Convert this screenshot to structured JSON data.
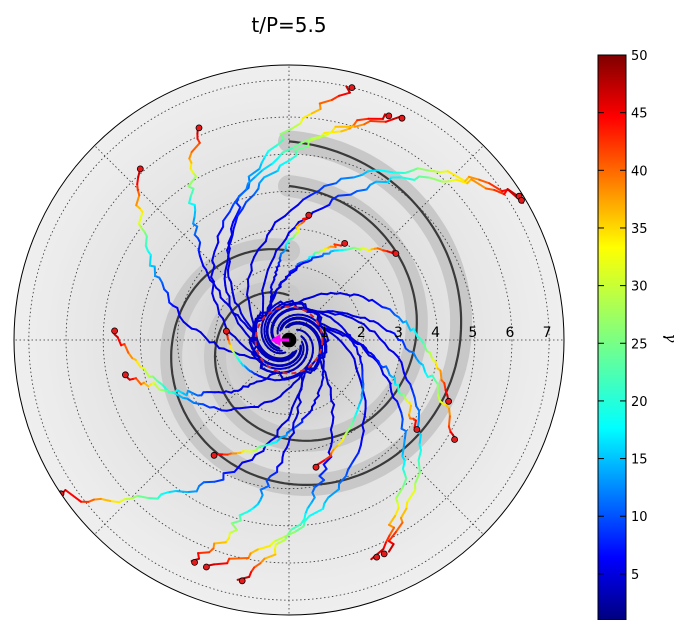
{
  "chart_data": {
    "type": "polar-trajectory",
    "title": "t/P=5.5",
    "r_ticks": [
      "1",
      "2",
      "3",
      "4",
      "5",
      "6",
      "7"
    ],
    "r_max": 7.4,
    "grid": true,
    "colorbar": {
      "label": "γ",
      "min": 1,
      "max": 50,
      "ticks": [
        "5",
        "10",
        "15",
        "20",
        "25",
        "30",
        "35",
        "40",
        "45",
        "50"
      ],
      "colormap": "jet"
    },
    "central_object": {
      "radius": 0.25,
      "color": "#000000"
    },
    "light_cylinder": {
      "radius": 0.9,
      "color": "#d62728",
      "style": "dashed"
    },
    "direction_arrow": {
      "color": "#ff00ff",
      "angle_deg": 180,
      "length": 0.5
    },
    "spiral_shells": [
      {
        "r_start": 1.2,
        "growth": 0.95,
        "turns": 1.0
      },
      {
        "r_start": 2.4,
        "growth": 0.95,
        "turns": 1.0
      }
    ],
    "particles": [
      {
        "theta_deg": 76,
        "r": 7.0
      },
      {
        "theta_deg": 66,
        "r": 6.6
      },
      {
        "theta_deg": 63,
        "r": 6.7
      },
      {
        "theta_deg": 113,
        "r": 6.2
      },
      {
        "theta_deg": 131,
        "r": 6.1
      },
      {
        "theta_deg": 32,
        "r": 7.3
      },
      {
        "theta_deg": 31,
        "r": 7.3
      },
      {
        "theta_deg": 81,
        "r": 3.4
      },
      {
        "theta_deg": 60,
        "r": 3.0
      },
      {
        "theta_deg": 39,
        "r": 3.7
      },
      {
        "theta_deg": 177,
        "r": 4.7
      },
      {
        "theta_deg": 172,
        "r": 1.7
      },
      {
        "theta_deg": 192,
        "r": 4.5
      },
      {
        "theta_deg": 214,
        "r": 7.4
      },
      {
        "theta_deg": 237,
        "r": 3.7
      },
      {
        "theta_deg": 250,
        "r": 6.5
      },
      {
        "theta_deg": 247,
        "r": 6.5
      },
      {
        "theta_deg": 259,
        "r": 6.6
      },
      {
        "theta_deg": 292,
        "r": 6.3
      },
      {
        "theta_deg": 294,
        "r": 6.3
      },
      {
        "theta_deg": 282,
        "r": 3.5
      },
      {
        "theta_deg": 325,
        "r": 4.2
      },
      {
        "theta_deg": 329,
        "r": 5.2
      },
      {
        "theta_deg": 339,
        "r": 4.6
      }
    ]
  }
}
